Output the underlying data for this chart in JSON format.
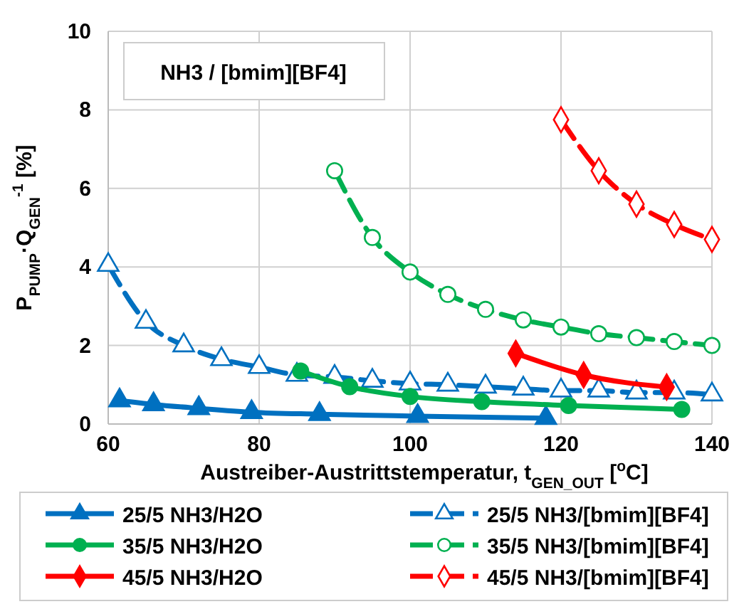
{
  "chart_data": {
    "type": "line",
    "xlabel": "Austreiber-Austrittstemperatur, t$_{GEN_OUT}$ [$^{o}$C]",
    "ylabel": "P$_{PUMP}$·Q$_{GEN}$$^{-1}$ [%]",
    "annotations": [
      "NH3 / [bmim][BF4]"
    ],
    "xlim": [
      60,
      140
    ],
    "ylim": [
      0,
      10
    ],
    "xticks": [
      60,
      80,
      100,
      120,
      140
    ],
    "yticks": [
      0,
      2,
      4,
      6,
      8,
      10
    ],
    "grid": true,
    "legend": "bottom",
    "series": [
      {
        "name": "25/5 NH3/H2O",
        "color": "#0070c0",
        "marker": "triangle",
        "line_style": "solid",
        "x": [
          61.5,
          66,
          72,
          79,
          88,
          101,
          118
        ],
        "values": [
          0.6,
          0.5,
          0.4,
          0.3,
          0.25,
          0.2,
          0.15
        ]
      },
      {
        "name": "25/5 NH3/[bmim][BF4]",
        "color": "#0070c0",
        "marker": "triangle",
        "line_style": "dashed",
        "x": [
          60,
          65,
          70,
          75,
          80,
          85,
          90,
          95,
          100,
          105,
          110,
          115,
          120,
          125,
          130,
          135,
          140
        ],
        "values": [
          4.05,
          2.6,
          2.0,
          1.65,
          1.45,
          1.25,
          1.2,
          1.1,
          1.03,
          1.0,
          0.95,
          0.9,
          0.85,
          0.85,
          0.8,
          0.8,
          0.75
        ]
      },
      {
        "name": "35/5 NH3/H2O",
        "color": "#00b050",
        "marker": "circle",
        "line_style": "solid",
        "x": [
          85.5,
          92,
          100,
          109.5,
          121,
          136
        ],
        "values": [
          1.35,
          0.95,
          0.7,
          0.57,
          0.47,
          0.37
        ]
      },
      {
        "name": "35/5 NH3/[bmim][BF4]",
        "color": "#00b050",
        "marker": "circle",
        "line_style": "dashed",
        "x": [
          90,
          95,
          100,
          105,
          110,
          115,
          120,
          125,
          130,
          135,
          140
        ],
        "values": [
          6.45,
          4.75,
          3.87,
          3.3,
          2.92,
          2.65,
          2.47,
          2.3,
          2.2,
          2.1,
          2.0
        ]
      },
      {
        "name": "45/5 NH3/H2O",
        "color": "#ff0000",
        "marker": "diamond",
        "line_style": "solid",
        "x": [
          114,
          123,
          134
        ],
        "values": [
          1.8,
          1.25,
          0.94
        ]
      },
      {
        "name": "45/5 NH3/[bmim][BF4]",
        "color": "#ff0000",
        "marker": "diamond",
        "line_style": "dashed",
        "x": [
          120,
          125,
          130,
          135,
          140
        ],
        "values": [
          7.75,
          6.45,
          5.6,
          5.08,
          4.7
        ]
      }
    ]
  }
}
